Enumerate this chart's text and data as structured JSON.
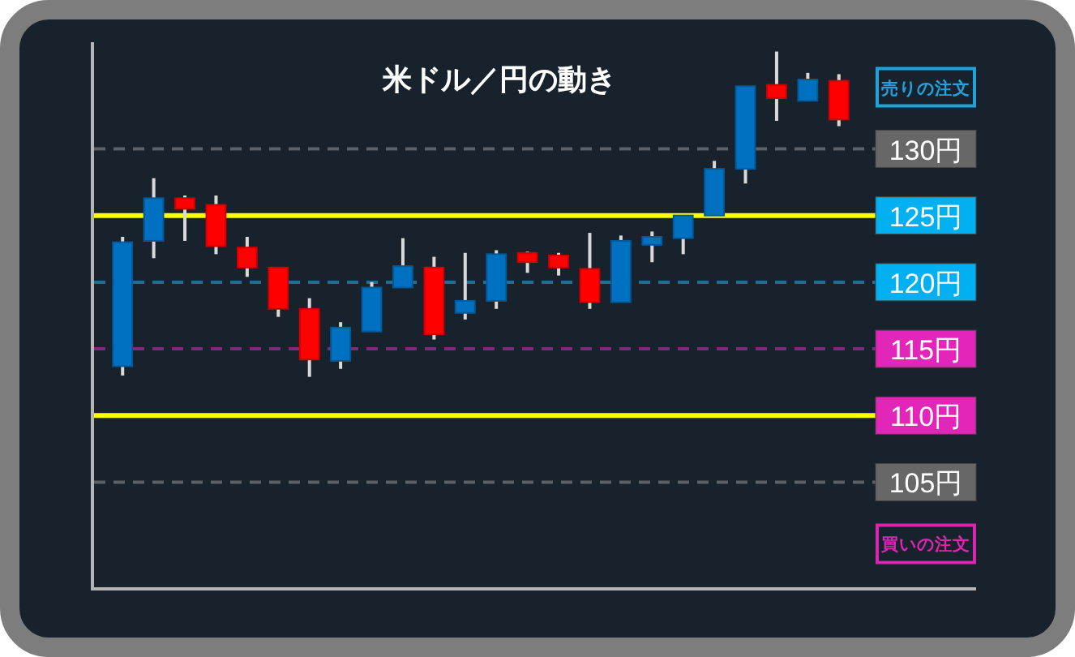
{
  "chart_data": {
    "type": "candlestick",
    "title": "米ドル／円の動き",
    "categories": [
      null,
      null,
      null,
      null,
      null,
      null,
      null,
      null,
      null,
      null,
      null,
      null,
      null,
      null,
      null,
      null,
      null,
      null,
      null,
      null,
      null,
      null,
      null,
      null
    ],
    "ohlc": [
      [
        113.7,
        123.4,
        113.0,
        123.0
      ],
      [
        123.1,
        127.8,
        121.8,
        126.3
      ],
      [
        126.3,
        126.5,
        123.1,
        125.5
      ],
      [
        125.8,
        126.5,
        122.1,
        122.7
      ],
      [
        122.6,
        123.4,
        120.4,
        121.1
      ],
      [
        121.1,
        121.1,
        117.4,
        118.0
      ],
      [
        118.0,
        118.8,
        112.9,
        114.2
      ],
      [
        114.1,
        117.0,
        113.5,
        116.6
      ],
      [
        116.3,
        120.0,
        116.3,
        119.6
      ],
      [
        119.6,
        123.3,
        119.6,
        121.2
      ],
      [
        121.1,
        121.9,
        115.7,
        116.1
      ],
      [
        117.7,
        122.2,
        117.2,
        118.6
      ],
      [
        118.6,
        122.4,
        118.0,
        122.1
      ],
      [
        122.2,
        122.3,
        120.7,
        121.5
      ],
      [
        122.0,
        122.2,
        120.5,
        121.1
      ],
      [
        121.0,
        123.7,
        118.0,
        118.5
      ],
      [
        118.5,
        123.5,
        118.5,
        123.1
      ],
      [
        122.8,
        123.8,
        121.5,
        123.4
      ],
      [
        123.3,
        125.0,
        122.1,
        125.0
      ],
      [
        125.0,
        129.1,
        125.0,
        128.5
      ],
      [
        128.5,
        134.7,
        127.4,
        134.7
      ],
      [
        134.8,
        137.3,
        132.1,
        133.8
      ],
      [
        133.6,
        135.7,
        133.6,
        135.2
      ],
      [
        135.1,
        135.6,
        131.7,
        132.2
      ]
    ],
    "colors": [
      "#0070c0",
      "#0070c0",
      "#ff0000",
      "#ff0000",
      "#ff0000",
      "#ff0000",
      "#ff0000",
      "#0070c0",
      "#0070c0",
      "#0070c0",
      "#ff0000",
      "#0070c0",
      "#0070c0",
      "#ff0000",
      "#ff0000",
      "#ff0000",
      "#0070c0",
      "#0070c0",
      "#0070c0",
      "#0070c0",
      "#0070c0",
      "#ff0000",
      "#0070c0",
      "#ff0000"
    ],
    "ylim": [
      97,
      138
    ],
    "ref_lines": [
      {
        "axis": "y",
        "value": 130,
        "label": "130円",
        "color": "#5b6166",
        "line_style": "dashed"
      },
      {
        "axis": "y",
        "value": 125,
        "label": "125円",
        "color": "#ffff00",
        "line_style": "solid"
      },
      {
        "axis": "y",
        "value": 120,
        "label": "120円",
        "color": "#1f6e96",
        "line_style": "dashed"
      },
      {
        "axis": "y",
        "value": 115,
        "label": "115円",
        "color": "#7c2a7c",
        "line_style": "dashed"
      },
      {
        "axis": "y",
        "value": 110,
        "label": "110円",
        "color": "#ffff00",
        "line_style": "solid"
      },
      {
        "axis": "y",
        "value": 105,
        "label": "105円",
        "color": "#5b6166",
        "line_style": "dashed"
      }
    ],
    "annotations": [
      "売りの注文",
      "買いの注文"
    ]
  }
}
